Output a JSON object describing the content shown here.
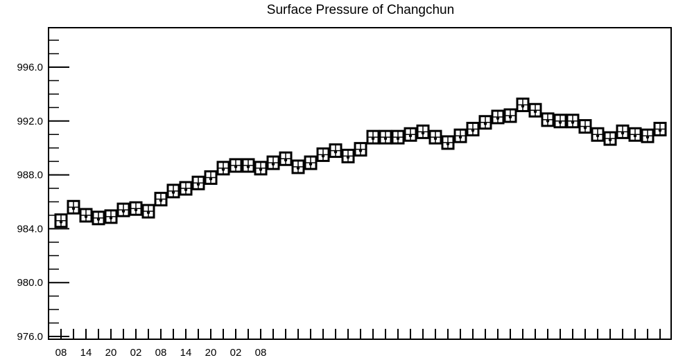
{
  "chart_data": {
    "type": "scatter",
    "title": "Surface Pressure of Changchun",
    "xlabel": "",
    "ylabel": "",
    "ylim": [
      976.0,
      999.0
    ],
    "yticks": [
      976.0,
      980.0,
      984.0,
      988.0,
      992.0,
      996.0
    ],
    "ytick_labels": [
      "976.0",
      "980.0",
      "984.0",
      "988.0",
      "992.0",
      "996.0"
    ],
    "x_hours_per_point": 3,
    "xtick_labels": [
      "08",
      "14",
      "20",
      "02",
      "08",
      "14",
      "20",
      "02",
      "08"
    ],
    "xtick_hours": [
      0,
      6,
      12,
      18,
      24,
      30,
      36,
      42,
      48
    ],
    "grid": false,
    "marker": "boxed-cross",
    "values": [
      984.6,
      985.6,
      985.0,
      984.8,
      984.9,
      985.4,
      985.5,
      985.3,
      986.2,
      986.8,
      987.0,
      987.4,
      987.8,
      988.5,
      988.7,
      988.7,
      988.5,
      988.9,
      989.2,
      988.6,
      988.9,
      989.5,
      989.8,
      989.4,
      989.9,
      990.8,
      990.8,
      990.8,
      991.0,
      991.2,
      990.8,
      990.4,
      990.9,
      991.4,
      991.9,
      992.3,
      992.4,
      993.2,
      992.8,
      992.1,
      992.0,
      992.0,
      991.6,
      991.0,
      990.7,
      991.2,
      991.0,
      990.9,
      991.4
    ]
  }
}
